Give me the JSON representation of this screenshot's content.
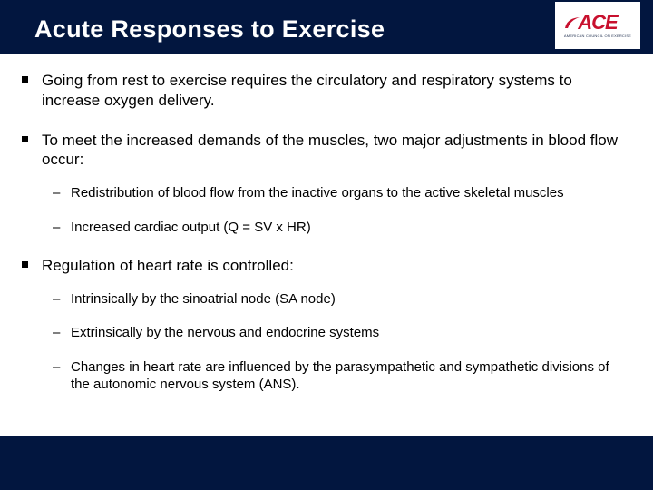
{
  "header": {
    "title": "Acute Responses to Exercise",
    "background_color": "#02163f",
    "title_color": "#ffffff",
    "title_fontsize": 27
  },
  "logo": {
    "text": "ACE",
    "subtitle": "AMERICAN COUNCIL ON EXERCISE",
    "brand_color": "#c8102e",
    "sub_color": "#1a2a4a"
  },
  "bullets": [
    {
      "text": "Going from rest to exercise requires the circulatory and respiratory systems to increase oxygen delivery.",
      "sub": []
    },
    {
      "text": "To meet the increased demands of the muscles, two major adjustments in blood flow occur:",
      "sub": [
        "Redistribution of blood flow from the inactive organs to the active skeletal muscles",
        "Increased cardiac output (Q = SV x HR)"
      ]
    },
    {
      "text": "Regulation of heart rate is controlled:",
      "sub": [
        "Intrinsically by the sinoatrial node (SA node)",
        "Extrinsically by the nervous and endocrine systems",
        "Changes in heart rate are influenced by the parasympathetic and sympathetic divisions of the autonomic nervous system (ANS)."
      ]
    }
  ],
  "styling": {
    "body_fontsize": 17,
    "sub_fontsize": 15,
    "text_color": "#000000",
    "background_color": "#ffffff",
    "footer_color": "#02163f",
    "slide_width": 720,
    "slide_height": 540
  }
}
